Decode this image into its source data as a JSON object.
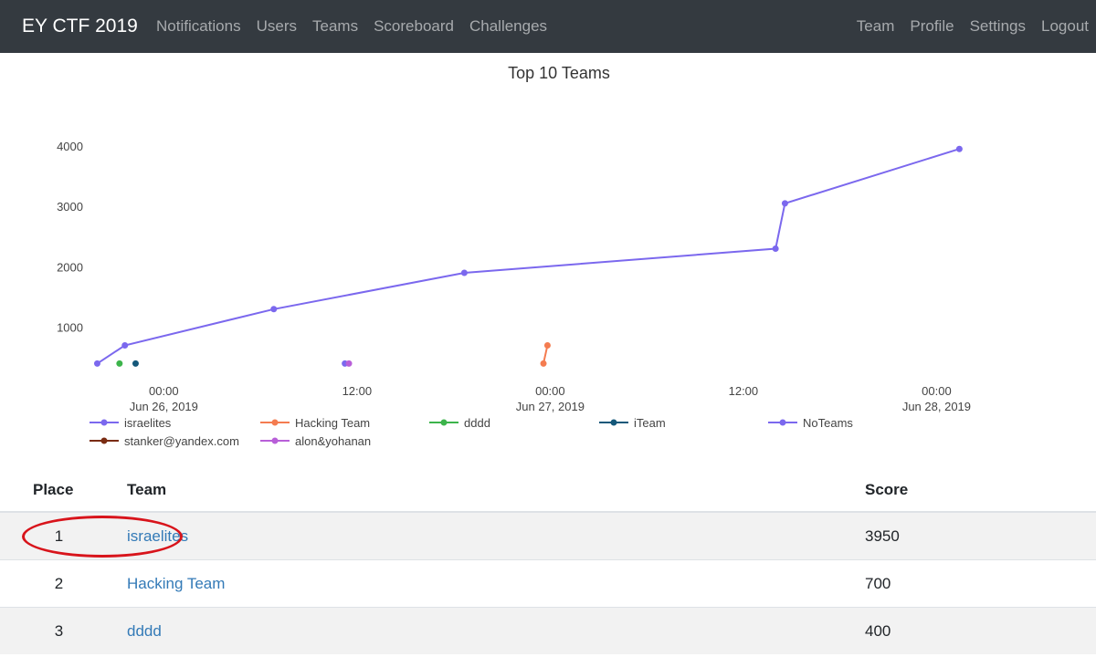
{
  "navbar": {
    "brand": "EY CTF 2019",
    "left_links": [
      "Notifications",
      "Users",
      "Teams",
      "Scoreboard",
      "Challenges"
    ],
    "right_links": [
      "Team",
      "Profile",
      "Settings",
      "Logout"
    ]
  },
  "chart_data": {
    "type": "line",
    "title": "Top 10 Teams",
    "xlabel": "",
    "ylabel": "",
    "xlim": [
      "2019-06-25T19:30",
      "2019-06-28T06:30"
    ],
    "ylim": [
      300,
      4150
    ],
    "x_ticks": [
      {
        "t": "2019-06-26T00:00",
        "line1": "00:00",
        "line2": "Jun 26, 2019"
      },
      {
        "t": "2019-06-26T12:00",
        "line1": "12:00",
        "line2": ""
      },
      {
        "t": "2019-06-27T00:00",
        "line1": "00:00",
        "line2": "Jun 27, 2019"
      },
      {
        "t": "2019-06-27T12:00",
        "line1": "12:00",
        "line2": ""
      },
      {
        "t": "2019-06-28T00:00",
        "line1": "00:00",
        "line2": "Jun 28, 2019"
      }
    ],
    "y_ticks": [
      1000,
      2000,
      3000,
      4000
    ],
    "grid": false,
    "legend_position": "bottom",
    "series": [
      {
        "name": "israelites",
        "color": "#7b68ee",
        "points": [
          [
            "2019-06-25T19:52",
            400
          ],
          [
            "2019-06-25T21:35",
            700
          ],
          [
            "2019-06-26T06:50",
            1300
          ],
          [
            "2019-06-26T18:40",
            1900
          ],
          [
            "2019-06-27T14:00",
            2300
          ],
          [
            "2019-06-27T14:35",
            3050
          ],
          [
            "2019-06-28T01:25",
            3950
          ]
        ]
      },
      {
        "name": "Hacking Team",
        "color": "#f47c50",
        "points": [
          [
            "2019-06-26T23:35",
            400
          ],
          [
            "2019-06-26T23:50",
            700
          ]
        ]
      },
      {
        "name": "dddd",
        "color": "#3cb44b",
        "points": [
          [
            "2019-06-25T21:15",
            400
          ]
        ]
      },
      {
        "name": "iTeam",
        "color": "#14587a",
        "points": [
          [
            "2019-06-25T22:15",
            400
          ]
        ]
      },
      {
        "name": "NoTeams",
        "color": "#7b68ee",
        "points": [
          [
            "2019-06-26T11:15",
            400
          ]
        ]
      },
      {
        "name": "stanker@yandex.com",
        "color": "#7a2c12",
        "points": []
      },
      {
        "name": "alon&yohanan",
        "color": "#b85fd8",
        "points": [
          [
            "2019-06-26T11:30",
            400
          ]
        ]
      }
    ]
  },
  "table": {
    "headers": {
      "place": "Place",
      "team": "Team",
      "score": "Score"
    },
    "rows": [
      {
        "place": "1",
        "team": "israelites",
        "score": "3950"
      },
      {
        "place": "2",
        "team": "Hacking Team",
        "score": "700"
      },
      {
        "place": "3",
        "team": "dddd",
        "score": "400"
      }
    ]
  },
  "annotation": {
    "color": "#d8141b"
  }
}
